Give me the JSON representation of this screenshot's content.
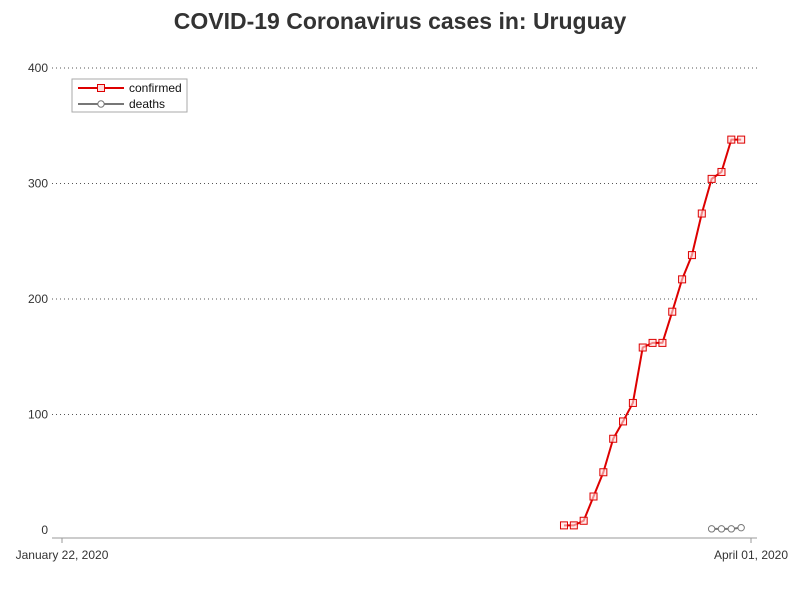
{
  "chart_data": {
    "type": "line",
    "title": "COVID-19 Coronavirus cases in: Uruguay",
    "xlabel": "",
    "ylabel": "",
    "xlim": [
      "2020-01-22",
      "2020-04-01"
    ],
    "x_tick_labels": [
      "January 22, 2020",
      "April 01, 2020"
    ],
    "ylim": [
      0,
      400
    ],
    "yticks": [
      0,
      100,
      200,
      300,
      400
    ],
    "grid": "horizontal dotted",
    "legend_position": "top-left",
    "series": [
      {
        "name": "confirmed",
        "color": "#dd0000",
        "marker": "square",
        "points": [
          [
            "2020-03-13",
            4
          ],
          [
            "2020-03-14",
            4
          ],
          [
            "2020-03-15",
            8
          ],
          [
            "2020-03-16",
            29
          ],
          [
            "2020-03-17",
            50
          ],
          [
            "2020-03-18",
            79
          ],
          [
            "2020-03-19",
            94
          ],
          [
            "2020-03-20",
            110
          ],
          [
            "2020-03-21",
            158
          ],
          [
            "2020-03-22",
            162
          ],
          [
            "2020-03-23",
            162
          ],
          [
            "2020-03-24",
            189
          ],
          [
            "2020-03-25",
            217
          ],
          [
            "2020-03-26",
            238
          ],
          [
            "2020-03-27",
            274
          ],
          [
            "2020-03-28",
            304
          ],
          [
            "2020-03-29",
            310
          ],
          [
            "2020-03-30",
            338
          ],
          [
            "2020-03-31",
            338
          ]
        ]
      },
      {
        "name": "deaths",
        "color": "#777777",
        "marker": "circle",
        "points": [
          [
            "2020-03-28",
            1
          ],
          [
            "2020-03-29",
            1
          ],
          [
            "2020-03-30",
            1
          ],
          [
            "2020-03-31",
            2
          ]
        ]
      }
    ]
  }
}
